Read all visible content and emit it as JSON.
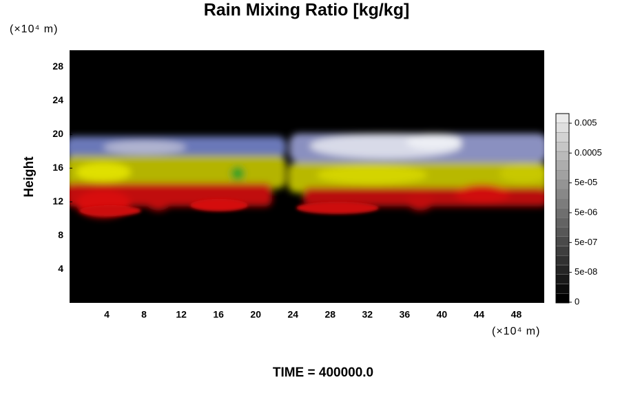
{
  "chart_data": {
    "type": "field",
    "title": "Rain Mixing Ratio [kg/kg]",
    "y_unit": "(×10⁴ m)",
    "x_unit": "(×10⁴ m)",
    "ylabel": "Height",
    "xlim": [
      0,
      51
    ],
    "xticks": [
      4,
      8,
      12,
      16,
      20,
      24,
      28,
      32,
      36,
      40,
      44,
      48
    ],
    "ylim": [
      0,
      30
    ],
    "yticks": [
      4,
      8,
      12,
      16,
      20,
      24,
      28
    ],
    "colorbar_ticks": [
      0,
      {
        "value": 5e-08,
        "label": "5e-08"
      },
      {
        "value": 5e-07,
        "label": "5e-07"
      },
      {
        "value": 5e-06,
        "label": "5e-06"
      },
      {
        "value": 5e-05,
        "label": "5e-05"
      },
      0.0005,
      0.005
    ],
    "time_label": "TIME = 400000.0"
  }
}
